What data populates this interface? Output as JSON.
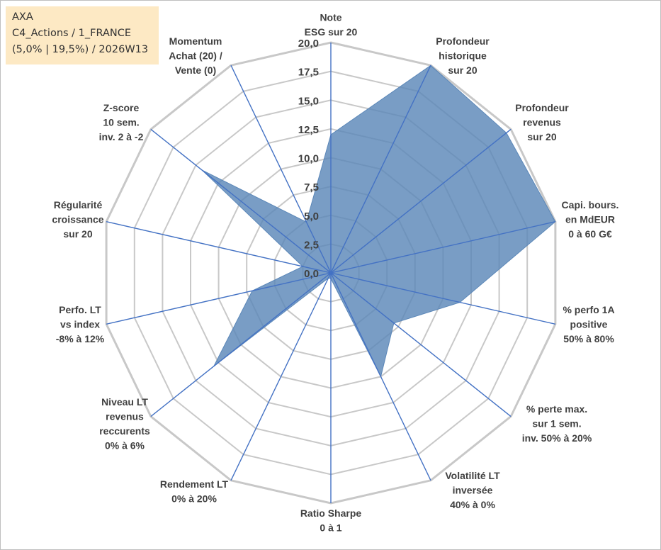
{
  "info": {
    "name": "AXA",
    "portfolio": "C4_Actions / 1_FRANCE",
    "params": "(5,0% | 19,5%) / 2026W13"
  },
  "chart_data": {
    "type": "radar",
    "title": "AXA",
    "rmin": 0,
    "rmax": 20,
    "tick_step": 2.5,
    "ticks": [
      "0,0",
      "2,5",
      "5,0",
      "7,5",
      "10,0",
      "12,5",
      "15,0",
      "17,5",
      "20,0"
    ],
    "axes": [
      {
        "label": [
          "Note",
          "ESG sur 20"
        ],
        "value": 12
      },
      {
        "label": [
          "Profondeur",
          "historique",
          "sur 20"
        ],
        "value": 20
      },
      {
        "label": [
          "Profondeur",
          "revenus",
          "sur 20"
        ],
        "value": 19.5
      },
      {
        "label": [
          "Capi. bours.",
          "en MdEUR",
          "0 à 60 G€"
        ],
        "value": 20
      },
      {
        "label": [
          "% perfo 1A",
          "positive",
          "50% à 80%"
        ],
        "value": 11.5
      },
      {
        "label": [
          "% perte max.",
          "sur 1 sem.",
          "inv. 50% à 20%"
        ],
        "value": 7
      },
      {
        "label": [
          "Volatilité LT",
          "inversée",
          "40% à 0%"
        ],
        "value": 10
      },
      {
        "label": [
          "Ratio Sharpe",
          "0 à 1"
        ],
        "value": 0.5
      },
      {
        "label": [
          "Rendement LT",
          "0% à 20%"
        ],
        "value": 0.5
      },
      {
        "label": [
          "Niveau LT",
          "revenus",
          "reccurents",
          "0% à 6%"
        ],
        "value": 13
      },
      {
        "label": [
          "Perfo. LT",
          "vs index",
          "-8% à 12%"
        ],
        "value": 7
      },
      {
        "label": [
          "Régularité",
          "croissance",
          "sur 20"
        ],
        "value": 2.5
      },
      {
        "label": [
          "Z-score",
          "10 sem.",
          "inv. 2 à -2"
        ],
        "value": 14.3
      },
      {
        "label": [
          "Momentum",
          "Achat (20) /",
          "Vente (0)"
        ],
        "value": 4.9
      }
    ],
    "series": [
      {
        "name": "AXA",
        "color": "#5b87b8"
      }
    ],
    "grid_color": "#c8c8c8",
    "spoke_color": "#4472c4"
  }
}
